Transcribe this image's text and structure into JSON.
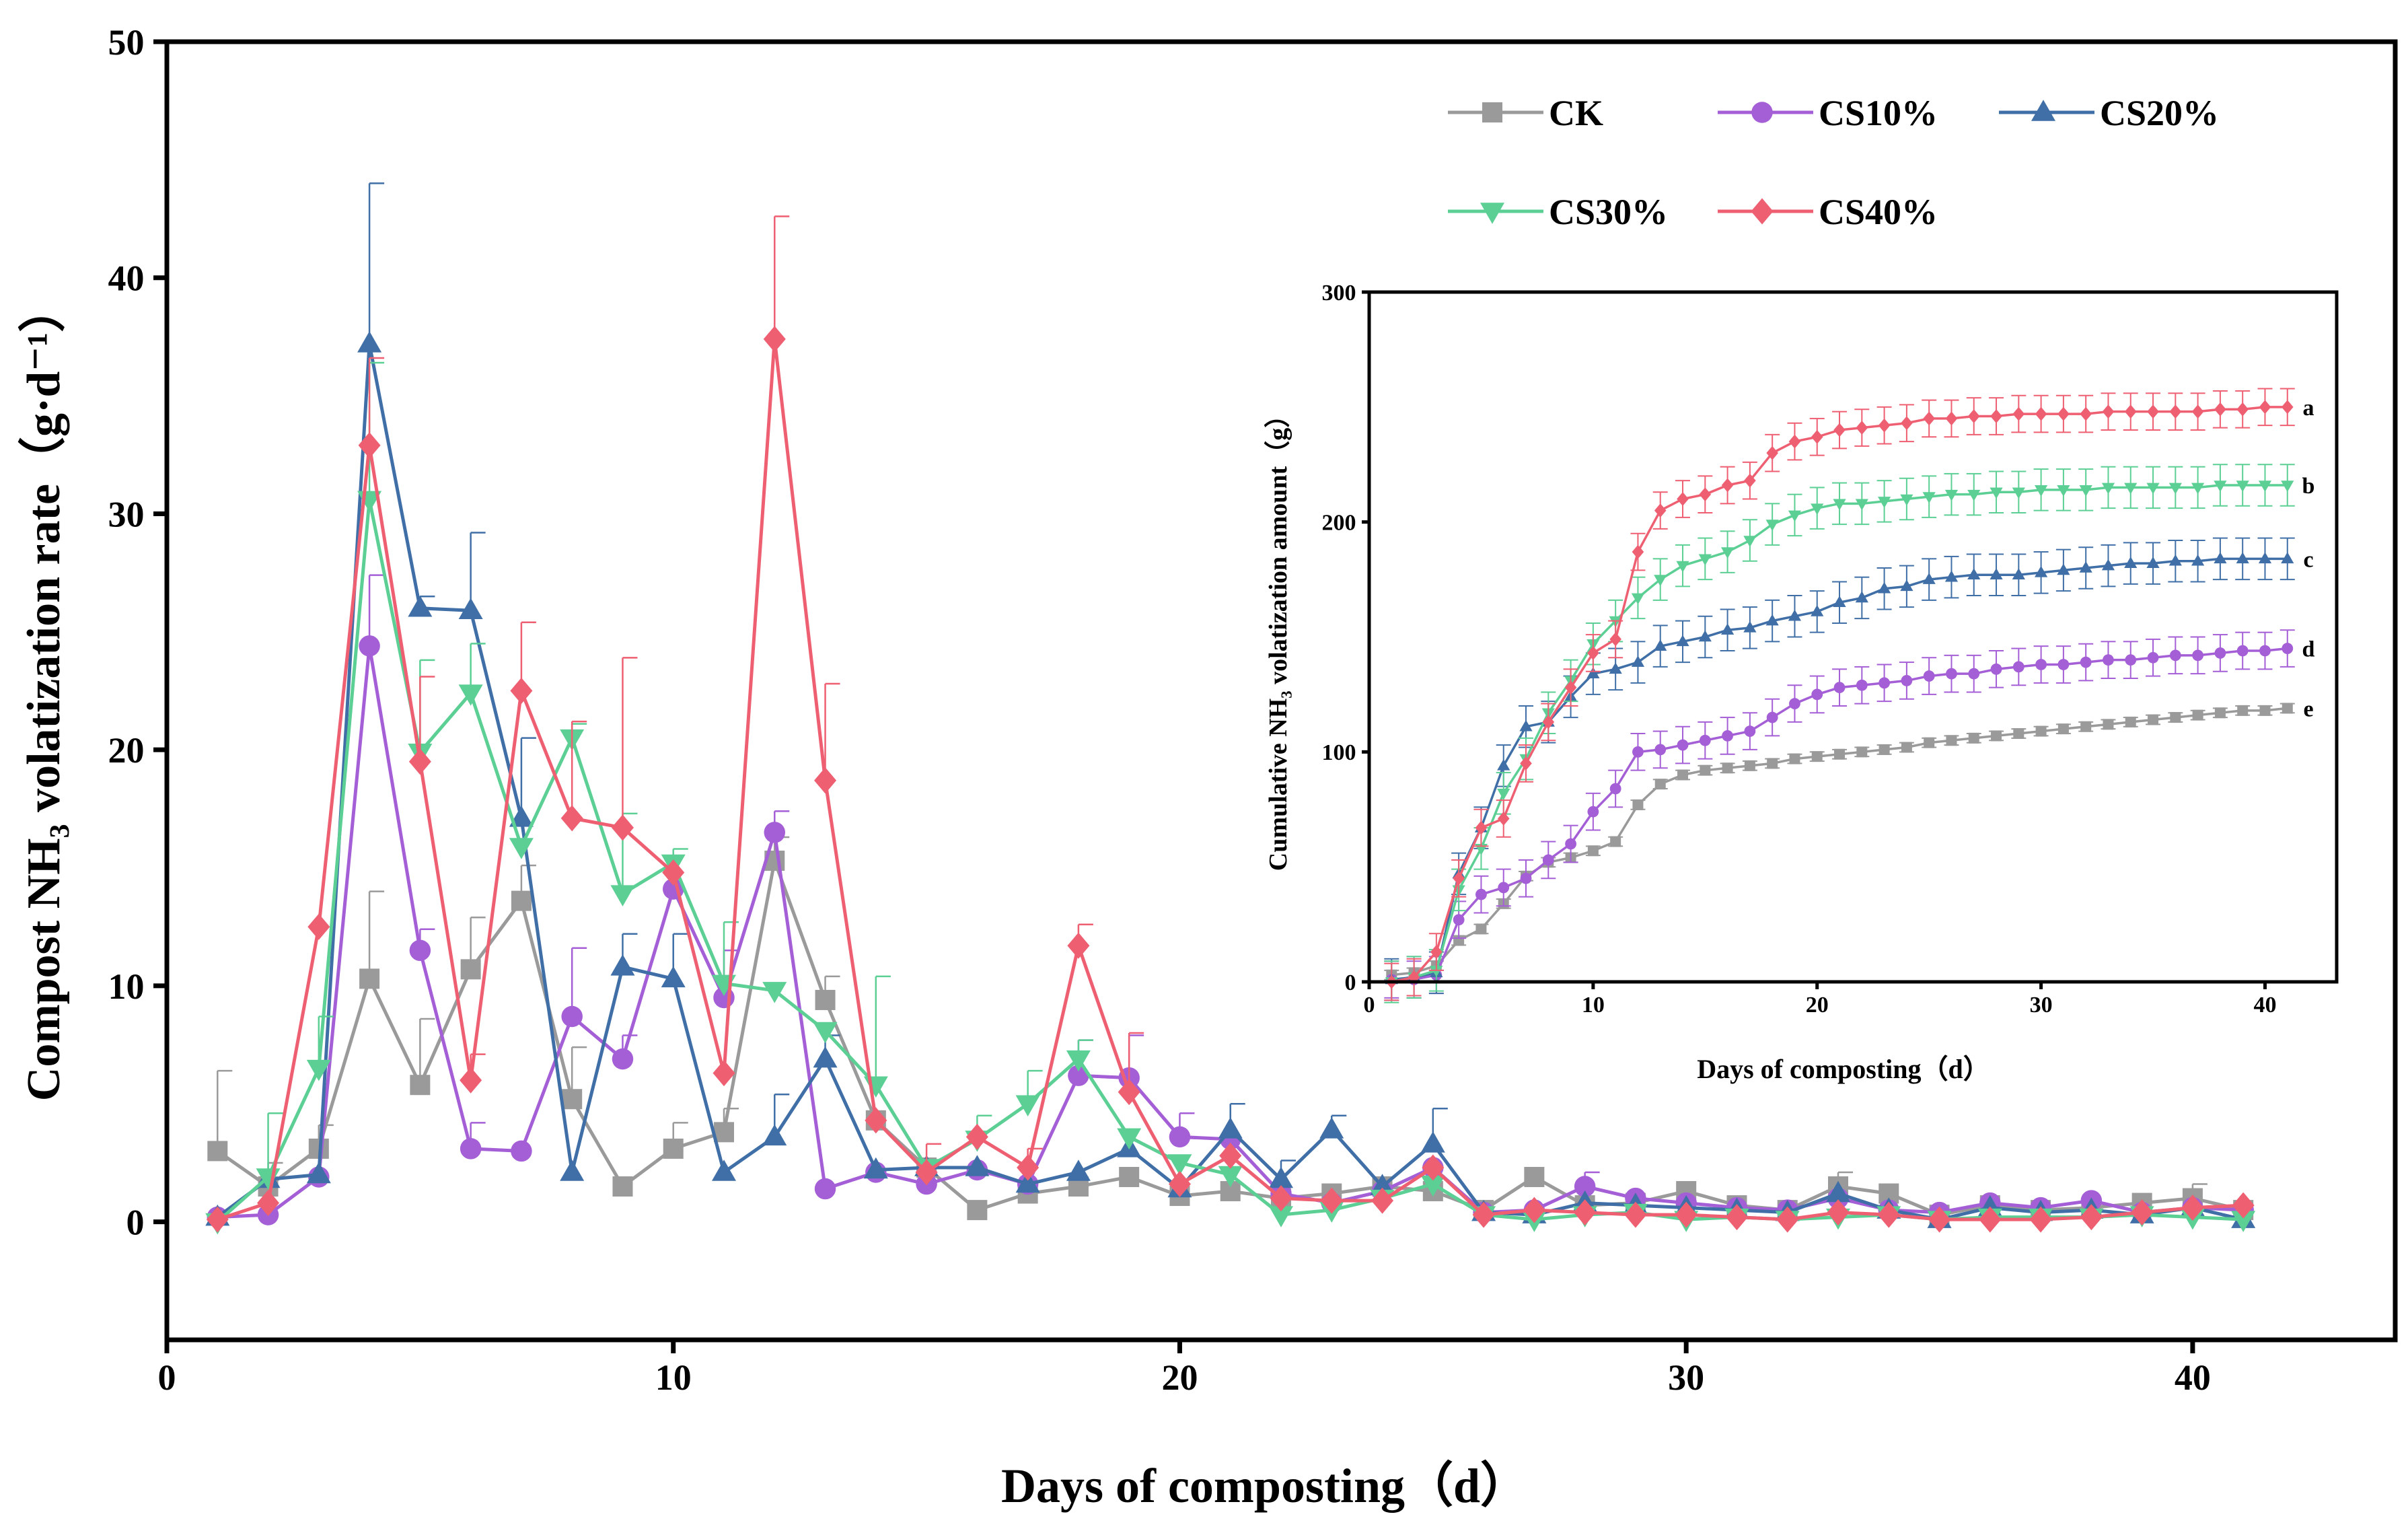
{
  "chart_data": [
    {
      "type": "line",
      "title": "",
      "xlabel": "Days of composting（d）",
      "ylabel": "Compost NH₃ volatization rate（g·d⁻¹）",
      "xlim": [
        0,
        44
      ],
      "ylim": [
        -5,
        50
      ],
      "xticks": [
        0,
        10,
        20,
        30,
        40
      ],
      "yticks": [
        0,
        10,
        20,
        30,
        40,
        50
      ],
      "grid": false,
      "legend_placement": "top-right",
      "x": [
        1,
        2,
        3,
        4,
        5,
        6,
        7,
        8,
        9,
        10,
        11,
        12,
        13,
        14,
        15,
        16,
        17,
        18,
        19,
        20,
        21,
        22,
        23,
        24,
        25,
        26,
        27,
        28,
        29,
        30,
        31,
        32,
        33,
        34,
        35,
        36,
        37,
        38,
        39,
        40,
        41
      ],
      "series": [
        {
          "name": "CK",
          "color": "#9a9a9a",
          "marker": "square",
          "values": [
            3.0,
            1.5,
            3.1,
            10.3,
            5.8,
            10.7,
            13.6,
            5.2,
            1.5,
            3.1,
            3.8,
            15.3,
            9.4,
            4.3,
            2.3,
            0.5,
            1.2,
            1.5,
            1.9,
            1.1,
            1.3,
            1.0,
            1.2,
            1.5,
            1.3,
            0.5,
            1.9,
            0.7,
            0.8,
            1.3,
            0.7,
            0.5,
            1.5,
            1.2,
            0.3,
            0.7,
            0.5,
            0.6,
            0.8,
            1.0,
            0.5
          ],
          "errors": {
            "1": 3.4,
            "2": 1.0,
            "3": 1.0,
            "4": 3.7,
            "5": 2.8,
            "6": 2.2,
            "7": 1.5,
            "8": 2.2,
            "10": 1.1,
            "11": 1.0,
            "12": 1.0,
            "13": 1.0,
            "33": 0.6,
            "40": 0.6
          }
        },
        {
          "name": "CS10%",
          "color": "#a45fd6",
          "marker": "circle",
          "values": [
            0.2,
            0.3,
            1.9,
            24.4,
            11.5,
            3.1,
            3.0,
            8.7,
            6.9,
            14.1,
            9.5,
            16.5,
            1.4,
            2.1,
            1.6,
            2.2,
            1.6,
            6.2,
            6.1,
            3.6,
            3.5,
            1.2,
            0.8,
            1.3,
            2.3,
            0.4,
            0.5,
            1.5,
            1.0,
            0.8,
            0.6,
            0.5,
            1.0,
            0.5,
            0.4,
            0.8,
            0.6,
            0.9,
            0.4,
            0.6,
            0.5
          ],
          "errors": {
            "4": 3.0,
            "5": 0.9,
            "6": 1.1,
            "8": 2.9,
            "9": 1.0,
            "11": 2.0,
            "12": 0.9,
            "18": 1.5,
            "19": 1.8,
            "20": 1.0,
            "28": 0.6
          }
        },
        {
          "name": "CS20%",
          "color": "#3f6fa6",
          "marker": "triangle-up",
          "values": [
            0.2,
            1.8,
            2.0,
            37.2,
            26.0,
            25.9,
            17.1,
            2.1,
            10.8,
            10.3,
            2.1,
            3.6,
            6.9,
            2.2,
            2.3,
            2.3,
            1.6,
            2.1,
            3.1,
            1.4,
            3.9,
            1.8,
            3.9,
            1.5,
            3.3,
            0.4,
            0.3,
            0.8,
            0.7,
            0.6,
            0.5,
            0.4,
            1.2,
            0.5,
            0.1,
            0.6,
            0.4,
            0.5,
            0.3,
            0.6,
            0.1
          ],
          "errors": {
            "4": 6.8,
            "5": 0.5,
            "6": 3.3,
            "7": 3.4,
            "9": 1.4,
            "10": 1.9,
            "12": 1.8,
            "13": 1.0,
            "21": 1.1,
            "22": 0.8,
            "23": 0.6,
            "25": 1.5
          }
        },
        {
          "name": "CS30%",
          "color": "#5ccf94",
          "marker": "triangle-down",
          "values": [
            0.0,
            1.9,
            6.5,
            30.6,
            19.9,
            22.4,
            15.9,
            20.5,
            13.9,
            15.2,
            10.1,
            9.8,
            8.1,
            5.8,
            2.3,
            3.5,
            5.0,
            6.9,
            3.6,
            2.5,
            2.0,
            0.3,
            0.5,
            1.0,
            1.6,
            0.3,
            0.1,
            0.3,
            0.4,
            0.1,
            0.2,
            0.1,
            0.2,
            0.3,
            0.1,
            0.2,
            0.2,
            0.2,
            0.3,
            0.2,
            0.1
          ],
          "errors": {
            "2": 2.7,
            "3": 2.2,
            "4": 5.8,
            "5": 3.9,
            "6": 2.1,
            "8": 0.6,
            "9": 3.4,
            "10": 0.6,
            "11": 2.6,
            "14": 4.6,
            "16": 1.0,
            "17": 1.4,
            "18": 0.8
          }
        },
        {
          "name": "CS40%",
          "color": "#ee5f72",
          "marker": "diamond",
          "values": [
            0.1,
            0.8,
            12.5,
            32.9,
            19.5,
            6.0,
            22.5,
            17.1,
            16.7,
            14.8,
            6.3,
            37.4,
            18.7,
            4.3,
            2.1,
            3.6,
            2.3,
            11.7,
            5.5,
            1.6,
            2.8,
            1.0,
            0.9,
            0.9,
            2.3,
            0.3,
            0.5,
            0.4,
            0.3,
            0.3,
            0.2,
            0.1,
            0.4,
            0.3,
            0.1,
            0.1,
            0.1,
            0.2,
            0.4,
            0.6,
            0.7
          ],
          "errors": {
            "4": 3.7,
            "5": 3.6,
            "6": 1.1,
            "7": 2.9,
            "8": 4.1,
            "9": 7.2,
            "12": 5.2,
            "13": 4.1,
            "15": 1.2,
            "17": 0.8,
            "18": 0.9,
            "19": 2.5
          }
        }
      ]
    },
    {
      "type": "line",
      "title": "",
      "inset": true,
      "xlabel": "Days of composting（d）",
      "ylabel": "Cumulative NH₃ volatization amount（g）",
      "xlim": [
        0,
        43.2
      ],
      "ylim": [
        0,
        300
      ],
      "xticks": [
        0,
        10,
        20,
        30,
        40
      ],
      "yticks": [
        0,
        100,
        200,
        300
      ],
      "grid": false,
      "x": [
        1,
        2,
        3,
        4,
        5,
        6,
        7,
        8,
        9,
        10,
        11,
        12,
        13,
        14,
        15,
        16,
        17,
        18,
        19,
        20,
        21,
        22,
        23,
        24,
        25,
        26,
        27,
        28,
        29,
        30,
        31,
        32,
        33,
        34,
        35,
        36,
        37,
        38,
        39,
        40,
        41
      ],
      "series": [
        {
          "name": "CK",
          "color": "#9a9a9a",
          "marker": "square",
          "error": 2,
          "letter": "e",
          "values": [
            3,
            4,
            7,
            18,
            23,
            34,
            46,
            52,
            54,
            57,
            61,
            77,
            86,
            90,
            92,
            93,
            94,
            95,
            97,
            98,
            99,
            100,
            101,
            102,
            104,
            105,
            106,
            107,
            108,
            109,
            110,
            111,
            112,
            113,
            114,
            115,
            116,
            117,
            118,
            118,
            119
          ]
        },
        {
          "name": "CS10%",
          "color": "#a45fd6",
          "marker": "circle",
          "error": 8,
          "letter": "d",
          "values": [
            1,
            1,
            3,
            27,
            38,
            41,
            45,
            53,
            60,
            74,
            84,
            100,
            101,
            103,
            105,
            107,
            109,
            115,
            121,
            125,
            128,
            129,
            130,
            131,
            133,
            134,
            134,
            136,
            137,
            138,
            138,
            139,
            140,
            140,
            141,
            142,
            142,
            143,
            144,
            144,
            145
          ]
        },
        {
          "name": "CS20%",
          "color": "#3f6fa6",
          "marker": "triangle-up",
          "error": 9,
          "letter": "c",
          "values": [
            1,
            2,
            4,
            47,
            67,
            94,
            111,
            113,
            124,
            134,
            136,
            139,
            146,
            148,
            150,
            153,
            154,
            157,
            159,
            161,
            165,
            167,
            171,
            172,
            175,
            176,
            177,
            177,
            177,
            178,
            179,
            180,
            181,
            182,
            182,
            183,
            183,
            184,
            184,
            184,
            184
          ]
        },
        {
          "name": "CS30%",
          "color": "#5ccf94",
          "marker": "triangle-down",
          "error": 9,
          "letter": "b",
          "values": [
            0,
            2,
            5,
            40,
            58,
            82,
            97,
            117,
            131,
            147,
            157,
            167,
            175,
            181,
            184,
            187,
            192,
            199,
            203,
            206,
            208,
            208,
            209,
            210,
            211,
            212,
            212,
            213,
            213,
            214,
            214,
            214,
            215,
            215,
            215,
            215,
            215,
            216,
            216,
            216,
            216
          ]
        },
        {
          "name": "CS40%",
          "color": "#ee5f72",
          "marker": "diamond",
          "error": 8,
          "letter": "a",
          "values": [
            0,
            2,
            13,
            45,
            67,
            71,
            95,
            113,
            128,
            143,
            149,
            187,
            205,
            210,
            212,
            216,
            218,
            230,
            235,
            237,
            240,
            241,
            242,
            243,
            245,
            245,
            246,
            246,
            247,
            247,
            247,
            247,
            248,
            248,
            248,
            248,
            248,
            249,
            249,
            250,
            250
          ]
        }
      ]
    }
  ]
}
